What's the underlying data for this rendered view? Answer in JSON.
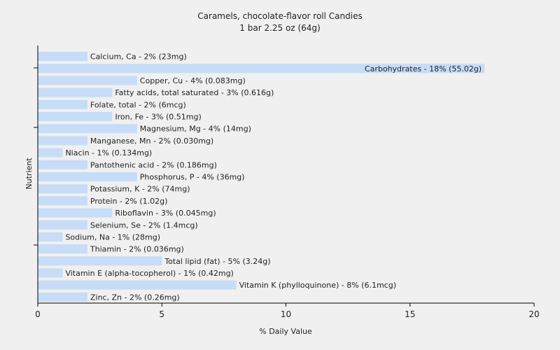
{
  "chart_data": {
    "type": "bar",
    "orientation": "horizontal",
    "title": "Caramels, chocolate-flavor roll Candies",
    "subtitle": "1 bar 2.25 oz (64g)",
    "xlabel": "% Daily Value",
    "ylabel": "Nutrient",
    "xlim": [
      0,
      20
    ],
    "xticks": [
      "0",
      "5",
      "10",
      "15",
      "20"
    ],
    "grid": false,
    "bar_color": "#c6dcf7",
    "categories": [
      "Calcium, Ca",
      "Carbohydrates",
      "Copper, Cu",
      "Fatty acids, total saturated",
      "Folate, total",
      "Iron, Fe",
      "Magnesium, Mg",
      "Manganese, Mn",
      "Niacin",
      "Pantothenic acid",
      "Phosphorus, P",
      "Potassium, K",
      "Protein",
      "Riboflavin",
      "Selenium, Se",
      "Sodium, Na",
      "Thiamin",
      "Total lipid (fat)",
      "Vitamin E (alpha-tocopherol)",
      "Vitamin K (phylloquinone)",
      "Zinc, Zn"
    ],
    "values": [
      2,
      18,
      4,
      3,
      2,
      3,
      4,
      2,
      1,
      2,
      4,
      2,
      2,
      3,
      2,
      1,
      2,
      5,
      1,
      8,
      2
    ],
    "labels": [
      "Calcium, Ca - 2% (23mg)",
      "Carbohydrates - 18% (55.02g)",
      "Copper, Cu - 4% (0.083mg)",
      "Fatty acids, total saturated - 3% (0.616g)",
      "Folate, total - 2% (6mcg)",
      "Iron, Fe - 3% (0.51mg)",
      "Magnesium, Mg - 4% (14mg)",
      "Manganese, Mn - 2% (0.030mg)",
      "Niacin - 1% (0.134mg)",
      "Pantothenic acid - 2% (0.186mg)",
      "Phosphorus, P - 4% (36mg)",
      "Potassium, K - 2% (74mg)",
      "Protein - 2% (1.02g)",
      "Riboflavin - 3% (0.045mg)",
      "Selenium, Se - 2% (1.4mcg)",
      "Sodium, Na - 1% (28mg)",
      "Thiamin - 2% (0.036mg)",
      "Total lipid (fat) - 5% (3.24g)",
      "Vitamin E (alpha-tocopherol) - 1% (0.42mg)",
      "Vitamin K (phylloquinone) - 8% (6.1mcg)",
      "Zinc, Zn - 2% (0.26mg)"
    ]
  }
}
